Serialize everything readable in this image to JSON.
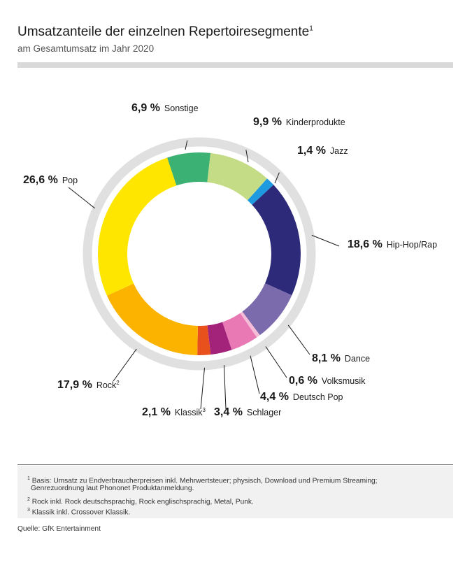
{
  "header": {
    "title": "Umsatzanteile der einzelnen Repertoiresegmente",
    "title_footnote": "1",
    "subtitle": "am Gesamtumsatz im Jahr 2020"
  },
  "chart_data": {
    "type": "pie",
    "variant": "donut",
    "categories": [
      "Sonstige",
      "Kinderprodukte",
      "Jazz",
      "Hip-Hop/Rap",
      "Dance",
      "Volksmusik",
      "Deutsch Pop",
      "Schlager",
      "Klassik",
      "Rock",
      "Pop"
    ],
    "values": [
      6.9,
      9.9,
      1.4,
      18.6,
      8.1,
      0.6,
      4.4,
      3.4,
      2.1,
      17.9,
      26.6
    ],
    "value_labels": [
      "6,9 %",
      "9,9 %",
      "1,4 %",
      "18,6 %",
      "8,1 %",
      "0,6 %",
      "4,4 %",
      "3,4 %",
      "2,1 %",
      "17,9 %",
      "26,6 %"
    ],
    "label_footnotes": [
      "",
      "",
      "",
      "",
      "",
      "",
      "",
      "",
      "3",
      "2",
      ""
    ],
    "colors": [
      "#3bb273",
      "#c5dc86",
      "#1e9be0",
      "#2c2a79",
      "#7b6aac",
      "#f4bcd6",
      "#e879b5",
      "#a3237a",
      "#e8511c",
      "#fbb300",
      "#ffe600"
    ],
    "track_color": "#e0e0e0",
    "start_angle_deg": -18.5,
    "direction": "clockwise",
    "unit": "%"
  },
  "footnotes": [
    {
      "mark": "1",
      "text": "Basis: Umsatz zu Endverbraucherpreisen inkl. Mehrwertsteuer; physisch, Download und Premium Streaming;"
    },
    {
      "mark": "",
      "text": "Genrezuordnung laut Phononet Produktanmeldung."
    },
    {
      "mark": "2",
      "text": "Rock inkl. Rock deutschsprachig, Rock englischsprachig, Metal, Punk."
    },
    {
      "mark": "3",
      "text": "Klassik inkl. Crossover Klassik."
    }
  ],
  "source": "Quelle: GfK Entertainment"
}
